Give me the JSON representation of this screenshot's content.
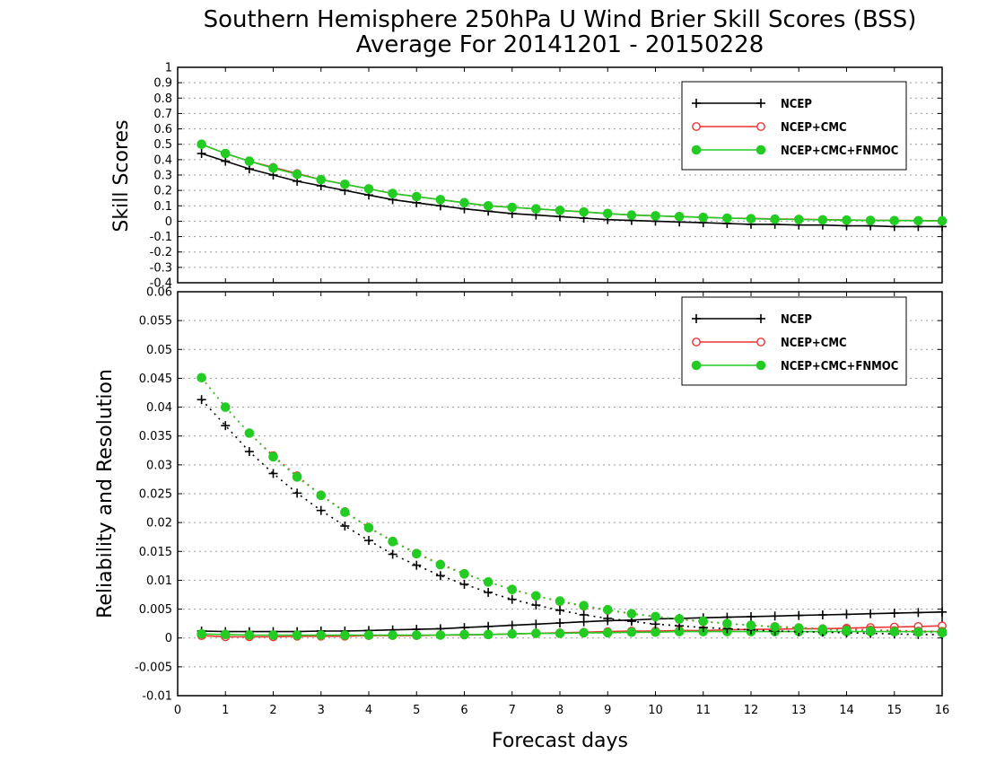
{
  "title_line1": "Southern Hemisphere 250hPa U Wind Brier Skill Scores (BSS)",
  "title_line2": "Average For 20141201 - 20150228",
  "xlabel": "Forecast days",
  "colors": {
    "NCEP": "#000000",
    "NCEP+CMC": "#ee3333",
    "NCEP+CMC+FNMOC": "#22cc22"
  },
  "chart_data": [
    {
      "type": "line",
      "ylabel": "Skill Scores",
      "xlim": [
        0,
        16
      ],
      "ylim": [
        -0.4,
        1
      ],
      "xticks": [
        0,
        1,
        2,
        3,
        4,
        5,
        6,
        7,
        8,
        9,
        10,
        11,
        12,
        13,
        14,
        15,
        16
      ],
      "yticks": [
        -0.4,
        -0.3,
        -0.2,
        -0.1,
        0,
        0.1,
        0.2,
        0.3,
        0.4,
        0.5,
        0.6,
        0.7,
        0.8,
        0.9,
        1
      ],
      "ytick_labels": [
        "-0.4",
        "-0.3",
        "-0.2",
        "-0.1",
        "0",
        "0.1",
        "0.2",
        "0.3",
        "0.4",
        "0.5",
        "0.6",
        "0.7",
        "0.8",
        "0.9",
        "1"
      ],
      "grid": true,
      "legend": "top-right",
      "x": [
        0.5,
        1.0,
        1.5,
        2.0,
        2.5,
        3.0,
        3.5,
        4.0,
        4.5,
        5.0,
        5.5,
        6.0,
        6.5,
        7.0,
        7.5,
        8.0,
        8.5,
        9.0,
        9.5,
        10.0,
        10.5,
        11.0,
        11.5,
        12.0,
        12.5,
        13.0,
        13.5,
        14.0,
        14.5,
        15.0,
        15.5,
        16.0
      ],
      "series": [
        {
          "name": "NCEP",
          "marker": "plus",
          "style": "solid",
          "values": [
            0.44,
            0.39,
            0.34,
            0.3,
            0.26,
            0.23,
            0.2,
            0.17,
            0.14,
            0.12,
            0.1,
            0.08,
            0.065,
            0.05,
            0.04,
            0.03,
            0.02,
            0.01,
            0.005,
            0.0,
            -0.005,
            -0.01,
            -0.015,
            -0.02,
            -0.02,
            -0.025,
            -0.025,
            -0.03,
            -0.03,
            -0.035,
            -0.035,
            -0.035
          ]
        },
        {
          "name": "NCEP+CMC",
          "marker": "open-circle",
          "style": "solid",
          "values": [
            0.5,
            0.44,
            0.39,
            0.35,
            0.31,
            0.27,
            0.24,
            0.21,
            0.18,
            0.16,
            0.14,
            0.12,
            0.1,
            0.09,
            0.08,
            0.07,
            0.06,
            0.05,
            0.04,
            0.035,
            0.03,
            0.025,
            0.02,
            0.018,
            0.015,
            0.013,
            0.01,
            0.008,
            0.006,
            0.005,
            0.004,
            0.003
          ]
        },
        {
          "name": "NCEP+CMC+FNMOC",
          "marker": "filled-circle",
          "style": "solid",
          "values": [
            0.5,
            0.44,
            0.39,
            0.345,
            0.305,
            0.27,
            0.24,
            0.21,
            0.18,
            0.16,
            0.14,
            0.12,
            0.1,
            0.09,
            0.08,
            0.07,
            0.06,
            0.05,
            0.04,
            0.035,
            0.03,
            0.025,
            0.02,
            0.016,
            0.013,
            0.011,
            0.009,
            0.007,
            0.005,
            0.004,
            0.003,
            0.002
          ]
        }
      ]
    },
    {
      "type": "line",
      "ylabel": "Reliability and Resolution",
      "xlim": [
        0,
        16
      ],
      "ylim": [
        -0.01,
        0.06
      ],
      "xticks": [
        0,
        1,
        2,
        3,
        4,
        5,
        6,
        7,
        8,
        9,
        10,
        11,
        12,
        13,
        14,
        15,
        16
      ],
      "xtick_labels": [
        "0",
        "1",
        "2",
        "3",
        "4",
        "5",
        "6",
        "7",
        "8",
        "9",
        "10",
        "11",
        "12",
        "13",
        "14",
        "15",
        "16"
      ],
      "yticks": [
        -0.01,
        -0.005,
        0,
        0.005,
        0.01,
        0.015,
        0.02,
        0.025,
        0.03,
        0.035,
        0.04,
        0.045,
        0.05,
        0.055,
        0.06
      ],
      "ytick_labels": [
        "-0.01",
        "-0.005",
        "0",
        "0.005",
        "0.01",
        "0.015",
        "0.02",
        "0.025",
        "0.03",
        "0.035",
        "0.04",
        "0.045",
        "0.05",
        "0.055",
        "0.06"
      ],
      "grid": true,
      "legend": "top-right",
      "x": [
        0.5,
        1.0,
        1.5,
        2.0,
        2.5,
        3.0,
        3.5,
        4.0,
        4.5,
        5.0,
        5.5,
        6.0,
        6.5,
        7.0,
        7.5,
        8.0,
        8.5,
        9.0,
        9.5,
        10.0,
        10.5,
        11.0,
        11.5,
        12.0,
        12.5,
        13.0,
        13.5,
        14.0,
        14.5,
        15.0,
        15.5,
        16.0
      ],
      "series": [
        {
          "name": "NCEP",
          "marker": "plus",
          "style": "solid",
          "role": "reliability",
          "values": [
            0.0012,
            0.0011,
            0.0011,
            0.0011,
            0.0011,
            0.0012,
            0.0012,
            0.0013,
            0.0014,
            0.0015,
            0.0016,
            0.0018,
            0.002,
            0.0022,
            0.0024,
            0.0026,
            0.0028,
            0.003,
            0.0031,
            0.0033,
            0.0034,
            0.0035,
            0.0036,
            0.0037,
            0.0038,
            0.0039,
            0.004,
            0.0041,
            0.0042,
            0.0043,
            0.0044,
            0.0045
          ]
        },
        {
          "name": "NCEP+CMC",
          "marker": "open-circle",
          "style": "solid",
          "role": "reliability",
          "values": [
            0.0004,
            0.0002,
            0.0002,
            0.0002,
            0.0003,
            0.0003,
            0.0003,
            0.0004,
            0.0004,
            0.0004,
            0.0005,
            0.0005,
            0.0006,
            0.0007,
            0.0008,
            0.0009,
            0.001,
            0.0011,
            0.0012,
            0.0012,
            0.0013,
            0.0013,
            0.0014,
            0.0015,
            0.0015,
            0.0016,
            0.0016,
            0.0017,
            0.0018,
            0.0019,
            0.002,
            0.0021
          ]
        },
        {
          "name": "NCEP+CMC+FNMOC",
          "marker": "filled-circle",
          "style": "solid",
          "role": "reliability",
          "values": [
            0.0007,
            0.0006,
            0.0005,
            0.0005,
            0.0005,
            0.0005,
            0.0005,
            0.0005,
            0.0005,
            0.0005,
            0.0005,
            0.0006,
            0.0006,
            0.0007,
            0.0008,
            0.0008,
            0.0009,
            0.0009,
            0.001,
            0.001,
            0.0011,
            0.0011,
            0.0011,
            0.0011,
            0.0011,
            0.0011,
            0.0011,
            0.0011,
            0.0011,
            0.0011,
            0.0011,
            0.0011
          ]
        },
        {
          "name": "NCEP",
          "marker": "plus",
          "style": "dotted",
          "role": "resolution",
          "values": [
            0.0413,
            0.0368,
            0.0323,
            0.0285,
            0.0251,
            0.0221,
            0.0194,
            0.0169,
            0.0145,
            0.0126,
            0.0108,
            0.0093,
            0.0079,
            0.0067,
            0.0057,
            0.0048,
            0.004,
            0.0034,
            0.0029,
            0.0024,
            0.0021,
            0.0018,
            0.0016,
            0.0014,
            0.0012,
            0.0011,
            0.001,
            0.0009,
            0.0008,
            0.0007,
            0.0006,
            0.0006
          ]
        },
        {
          "name": "NCEP+CMC",
          "marker": "open-circle",
          "style": "dotted",
          "role": "resolution",
          "values": [
            0.0451,
            0.04,
            0.0355,
            0.0316,
            0.0281,
            0.0248,
            0.0219,
            0.0192,
            0.0168,
            0.0147,
            0.0128,
            0.0112,
            0.0097,
            0.0084,
            0.0073,
            0.0063,
            0.0055,
            0.0048,
            0.0042,
            0.0037,
            0.0032,
            0.0028,
            0.0025,
            0.0022,
            0.002,
            0.0018,
            0.0016,
            0.0015,
            0.0014,
            0.0013,
            0.0012,
            0.0011
          ]
        },
        {
          "name": "NCEP+CMC+FNMOC",
          "marker": "filled-circle",
          "style": "dotted",
          "role": "resolution",
          "values": [
            0.0451,
            0.04,
            0.0355,
            0.0314,
            0.0279,
            0.0247,
            0.0218,
            0.0191,
            0.0167,
            0.0146,
            0.0127,
            0.0111,
            0.0097,
            0.0084,
            0.0073,
            0.0064,
            0.0056,
            0.0049,
            0.0042,
            0.0037,
            0.0033,
            0.0029,
            0.0025,
            0.0022,
            0.0019,
            0.0017,
            0.0015,
            0.0013,
            0.0012,
            0.0011,
            0.001,
            0.0009
          ]
        }
      ]
    }
  ]
}
